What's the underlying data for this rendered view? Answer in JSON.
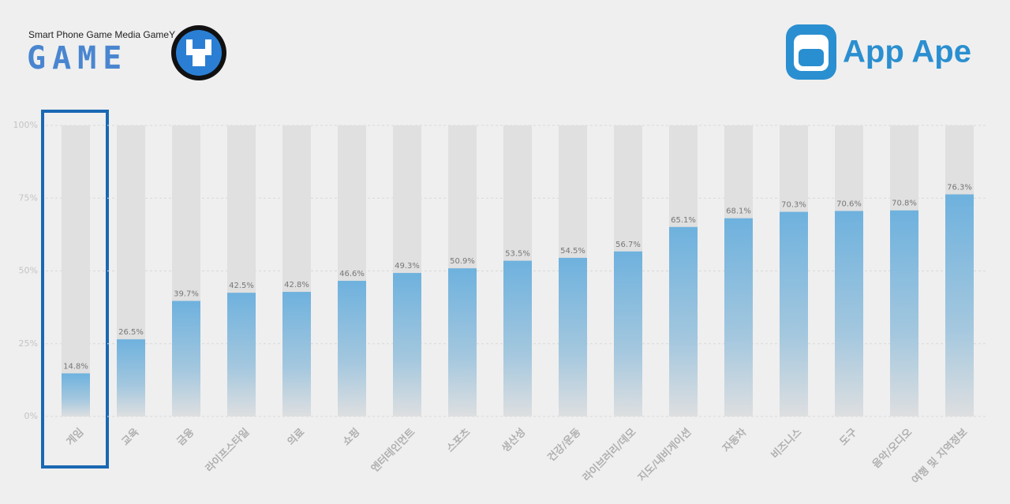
{
  "header": {
    "tagline": "Smart Phone Game Media GameY",
    "game_logo": "GAME",
    "app_logo": "App Ape"
  },
  "chart_data": {
    "type": "bar",
    "categories": [
      "게임",
      "교육",
      "금융",
      "라이프스타일",
      "의료",
      "쇼핑",
      "엔터테인먼트",
      "스포츠",
      "생산성",
      "건강/운동",
      "라이브러리/데모",
      "지도/내비게이션",
      "자동차",
      "비즈니스",
      "도구",
      "음악/오디오",
      "여행 및 지역정보"
    ],
    "values": [
      14.8,
      26.5,
      39.7,
      42.5,
      42.8,
      46.6,
      49.3,
      50.9,
      53.5,
      54.5,
      56.7,
      65.1,
      68.1,
      70.3,
      70.6,
      70.8,
      76.3
    ],
    "value_labels": [
      "14.8%",
      "26.5%",
      "39.7%",
      "42.5%",
      "42.8%",
      "46.6%",
      "49.3%",
      "50.9%",
      "53.5%",
      "54.5%",
      "56.7%",
      "65.1%",
      "68.1%",
      "70.3%",
      "70.6%",
      "70.8%",
      "76.3%"
    ],
    "color": "#5aa9dd",
    "ylim": [
      0,
      100
    ],
    "yticks": [
      {
        "value": 0,
        "label": "0%"
      },
      {
        "value": 25,
        "label": "25%"
      },
      {
        "value": 50,
        "label": "50%"
      },
      {
        "value": 75,
        "label": "75%"
      },
      {
        "value": 100,
        "label": "100%"
      }
    ],
    "grid": true
  }
}
